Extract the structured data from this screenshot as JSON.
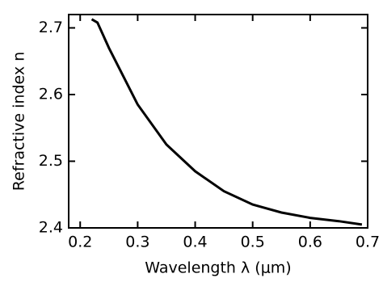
{
  "chart_data": {
    "type": "line",
    "x_label": "Wavelength λ (μm)",
    "y_label": "Refractive index n",
    "x": [
      0.22,
      0.23,
      0.25,
      0.3,
      0.35,
      0.4,
      0.45,
      0.5,
      0.55,
      0.6,
      0.65,
      0.69
    ],
    "values": [
      2.713,
      2.708,
      2.67,
      2.585,
      2.525,
      2.485,
      2.455,
      2.435,
      2.423,
      2.415,
      2.41,
      2.405
    ],
    "color": "#000000",
    "xlim": [
      0.18,
      0.7
    ],
    "xticks": [
      0.2,
      0.3,
      0.4,
      0.5,
      0.6,
      0.7
    ],
    "ylim": [
      2.4,
      2.72
    ],
    "yticks": [
      2.4,
      2.5,
      2.6,
      2.7
    ]
  }
}
